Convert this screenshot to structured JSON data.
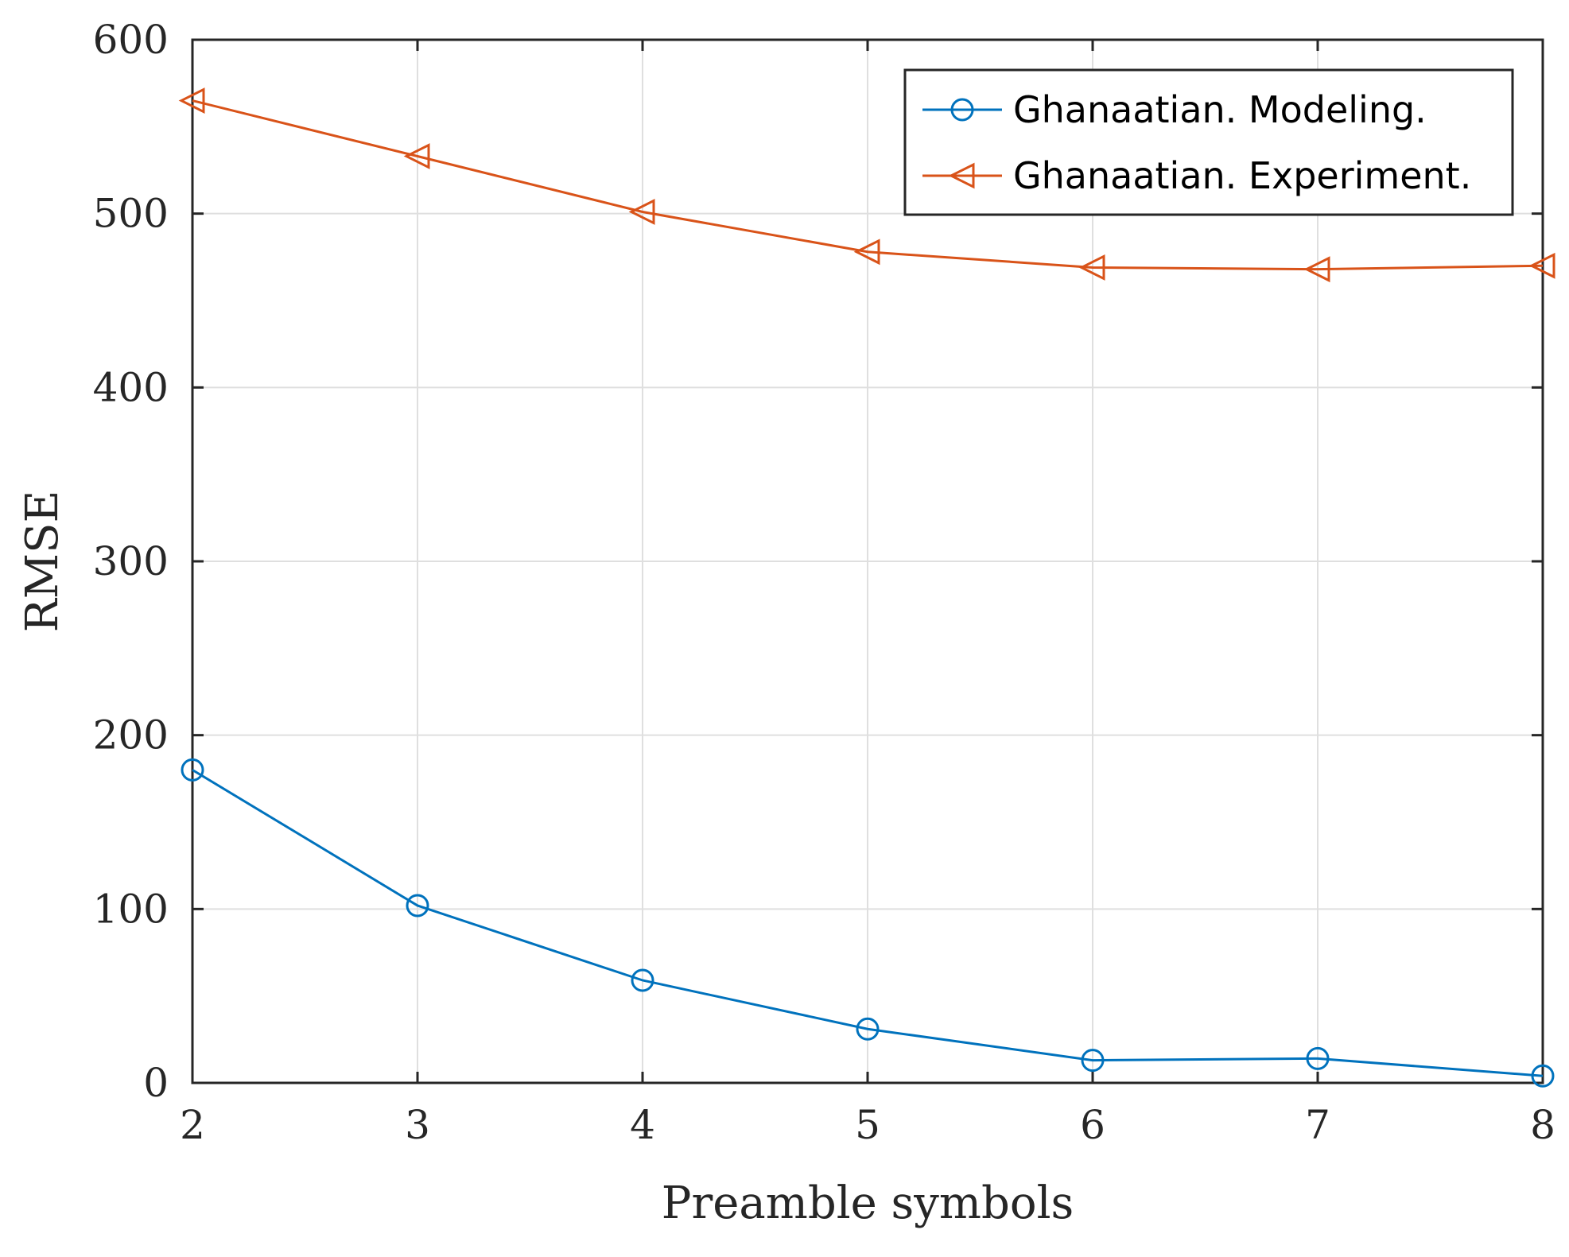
{
  "chart_data": {
    "type": "line",
    "xlabel": "Preamble symbols",
    "ylabel": "RMSE",
    "x": [
      2,
      3,
      4,
      5,
      6,
      7,
      8
    ],
    "xlim": [
      2,
      8
    ],
    "ylim": [
      0,
      600
    ],
    "xticks": [
      "2",
      "3",
      "4",
      "5",
      "6",
      "7",
      "8"
    ],
    "yticks": [
      "0",
      "100",
      "200",
      "300",
      "400",
      "500",
      "600"
    ],
    "grid": true,
    "legend_position": "top-right",
    "series": [
      {
        "name": "Ghanaatian. Modeling.",
        "color": "#0072BD",
        "marker": "circle",
        "values": [
          180,
          102,
          59,
          31,
          13,
          14,
          4
        ]
      },
      {
        "name": "Ghanaatian. Experiment.",
        "color": "#D95319",
        "marker": "triangle-left",
        "values": [
          565,
          533,
          501,
          478,
          469,
          468,
          470
        ]
      }
    ]
  }
}
